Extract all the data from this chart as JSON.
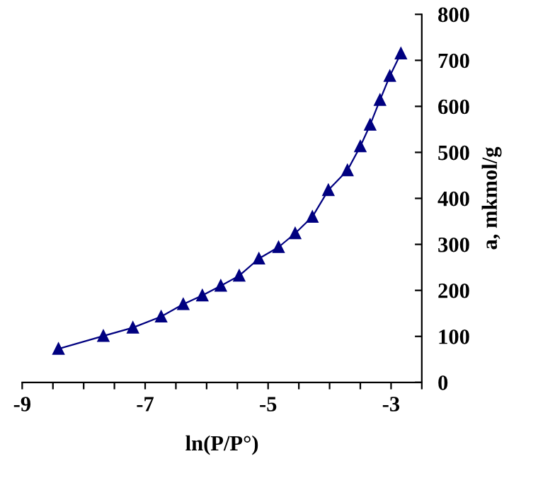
{
  "chart_data": {
    "type": "line",
    "xlabel": "ln(P/P°)",
    "ylabel": "a, mkmol/g",
    "color": "#000080",
    "marker": "triangle",
    "line_style": "solid",
    "grid": false,
    "legend": false,
    "x": [
      -8.41,
      -7.68,
      -7.2,
      -6.74,
      -6.38,
      -6.07,
      -5.77,
      -5.47,
      -5.15,
      -4.83,
      -4.56,
      -4.28,
      -4.02,
      -3.71,
      -3.5,
      -3.34,
      -3.18,
      -3.02,
      -2.84
    ],
    "values": [
      73,
      101,
      119,
      143,
      170,
      189,
      210,
      232,
      269,
      294,
      324,
      360,
      418,
      461,
      513,
      560,
      614,
      666,
      715
    ],
    "xlim": [
      -9,
      -2.5
    ],
    "xticks": [
      -9,
      {
        "value": -8.5,
        "label": null
      },
      {
        "value": -8,
        "label": null
      },
      {
        "value": -7.5,
        "label": null
      },
      -7,
      {
        "value": -6.5,
        "label": null
      },
      {
        "value": -6,
        "label": null
      },
      {
        "value": -5.5,
        "label": null
      },
      -5,
      {
        "value": -4.5,
        "label": null
      },
      {
        "value": -4,
        "label": null
      },
      {
        "value": -3.5,
        "label": null
      },
      -3,
      {
        "value": -2.5,
        "label": null
      }
    ],
    "ylim": [
      0,
      800
    ],
    "yticks": [
      0,
      100,
      200,
      300,
      400,
      500,
      600,
      700,
      800
    ]
  }
}
